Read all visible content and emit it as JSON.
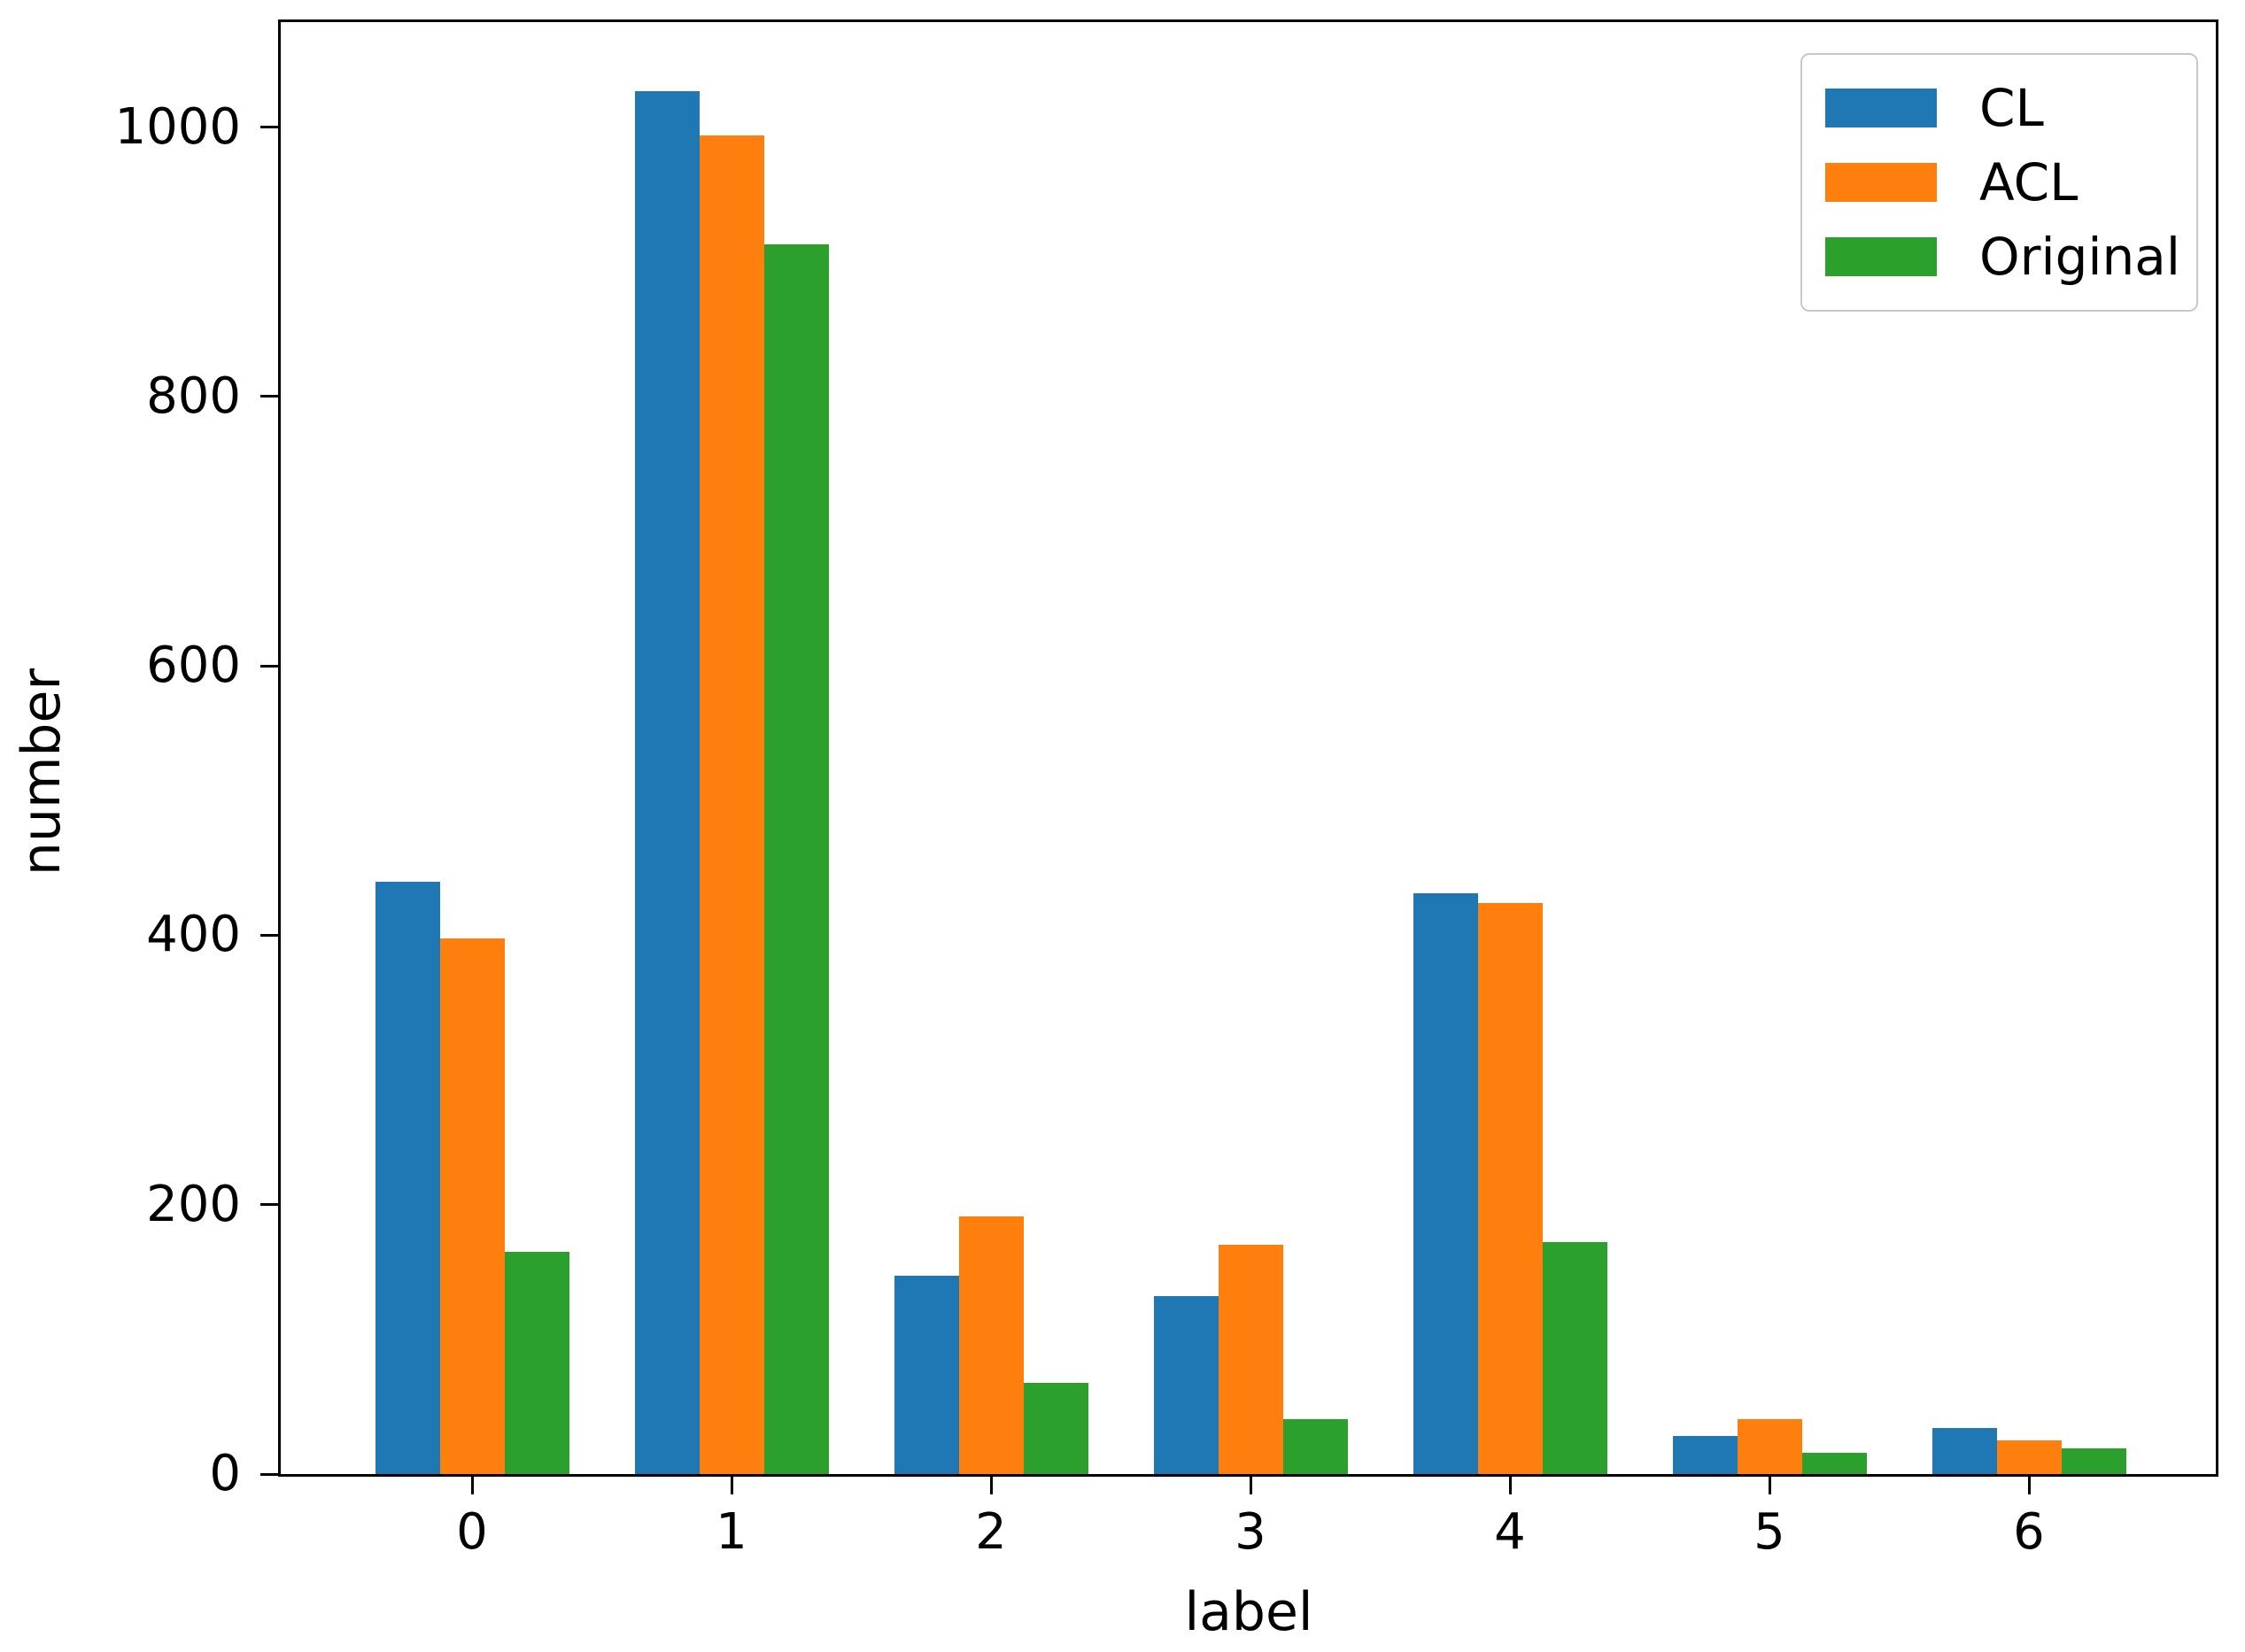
{
  "chart_data": {
    "type": "bar",
    "title": "",
    "xlabel": "label",
    "ylabel": "number",
    "categories": [
      "0",
      "1",
      "2",
      "3",
      "4",
      "5",
      "6"
    ],
    "series": [
      {
        "name": "CL",
        "color": "#1f77b4",
        "values": [
          440,
          1027,
          147,
          132,
          431,
          28,
          34
        ]
      },
      {
        "name": "ACL",
        "color": "#ff7f0e",
        "values": [
          398,
          994,
          191,
          170,
          424,
          41,
          25
        ]
      },
      {
        "name": "Original",
        "color": "#2ca02c",
        "values": [
          165,
          913,
          68,
          41,
          172,
          16,
          19
        ]
      }
    ],
    "ylim": [
      0,
      1078
    ],
    "yticks": [
      0,
      200,
      400,
      600,
      800,
      1000
    ],
    "legend_position": "upper right",
    "grid": false,
    "axis_color": "#000000",
    "legend_border_color": "#c8c8c8"
  }
}
